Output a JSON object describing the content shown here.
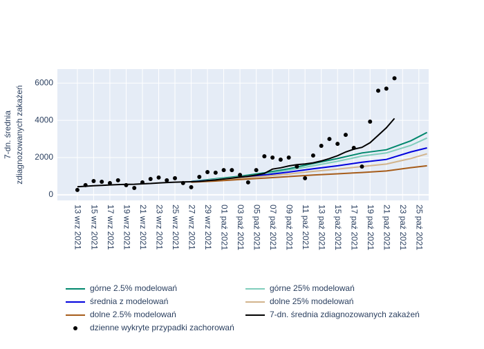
{
  "chart_data": {
    "type": "line",
    "y_label": [
      "7-dn. średnia",
      "zdiagnozowanych zakażeń"
    ],
    "ylim": [
      -300,
      6750
    ],
    "yticks": [
      0,
      2000,
      4000,
      6000
    ],
    "xlim": [
      "2021-09-10T13:00",
      "2021-10-26T05:00"
    ],
    "xticks": [
      {
        "value": "2021-09-13",
        "label": "13 wrz 2021"
      },
      {
        "value": "2021-09-15",
        "label": "15 wrz 2021"
      },
      {
        "value": "2021-09-17",
        "label": "17 wrz 2021"
      },
      {
        "value": "2021-09-19",
        "label": "19 wrz 2021"
      },
      {
        "value": "2021-09-21",
        "label": "21 wrz 2021"
      },
      {
        "value": "2021-09-23",
        "label": "23 wrz 2021"
      },
      {
        "value": "2021-09-25",
        "label": "25 wrz 2021"
      },
      {
        "value": "2021-09-27",
        "label": "27 wrz 2021"
      },
      {
        "value": "2021-09-29",
        "label": "29 wrz 2021"
      },
      {
        "value": "2021-10-01",
        "label": "01 paź 2021"
      },
      {
        "value": "2021-10-03",
        "label": "03 paź 2021"
      },
      {
        "value": "2021-10-05",
        "label": "05 paź 2021"
      },
      {
        "value": "2021-10-07",
        "label": "07 paź 2021"
      },
      {
        "value": "2021-10-09",
        "label": "09 paź 2021"
      },
      {
        "value": "2021-10-11",
        "label": "11 paź 2021"
      },
      {
        "value": "2021-10-13",
        "label": "13 paź 2021"
      },
      {
        "value": "2021-10-15",
        "label": "15 paź 2021"
      },
      {
        "value": "2021-10-17",
        "label": "17 paź 2021"
      },
      {
        "value": "2021-10-19",
        "label": "19 paź 2021"
      },
      {
        "value": "2021-10-21",
        "label": "21 paź 2021"
      },
      {
        "value": "2021-10-23",
        "label": "23 paź 2021"
      },
      {
        "value": "2021-10-25",
        "label": "25 paź 2021"
      }
    ],
    "grid": true,
    "x": [
      "2021-09-13",
      "2021-09-14",
      "2021-09-15",
      "2021-09-16",
      "2021-09-17",
      "2021-09-18",
      "2021-09-19",
      "2021-09-20",
      "2021-09-21",
      "2021-09-22",
      "2021-09-23",
      "2021-09-24",
      "2021-09-25",
      "2021-09-26",
      "2021-09-27",
      "2021-09-28",
      "2021-09-29",
      "2021-09-30",
      "2021-10-01",
      "2021-10-02",
      "2021-10-03",
      "2021-10-04",
      "2021-10-05",
      "2021-10-06",
      "2021-10-07",
      "2021-10-08",
      "2021-10-09",
      "2021-10-10",
      "2021-10-11",
      "2021-10-12",
      "2021-10-13",
      "2021-10-14",
      "2021-10-15",
      "2021-10-16",
      "2021-10-17",
      "2021-10-18",
      "2021-10-19",
      "2021-10-20",
      "2021-10-21",
      "2021-10-22"
    ],
    "series": [
      {
        "name": "górne 2.5% modelowań",
        "color": "#00876c",
        "mode": "lines",
        "x": [
          "2021-09-27",
          "2021-09-30",
          "2021-10-03",
          "2021-10-06",
          "2021-10-09",
          "2021-10-12",
          "2021-10-15",
          "2021-10-18",
          "2021-10-21",
          "2021-10-24",
          "2021-10-26"
        ],
        "values": [
          720,
          860,
          1000,
          1180,
          1400,
          1680,
          1950,
          2250,
          2420,
          2900,
          3350
        ]
      },
      {
        "name": "górne 25% modelowań",
        "color": "#7fcdbb",
        "mode": "lines",
        "x": [
          "2021-09-27",
          "2021-09-30",
          "2021-10-03",
          "2021-10-06",
          "2021-10-09",
          "2021-10-12",
          "2021-10-15",
          "2021-10-18",
          "2021-10-21",
          "2021-10-24",
          "2021-10-26"
        ],
        "values": [
          710,
          830,
          960,
          1120,
          1330,
          1560,
          1800,
          2080,
          2250,
          2650,
          3050
        ]
      },
      {
        "name": "średnia z modelowań",
        "color": "#0000dd",
        "mode": "lines",
        "x": [
          "2021-09-27",
          "2021-09-30",
          "2021-10-03",
          "2021-10-06",
          "2021-10-09",
          "2021-10-12",
          "2021-10-15",
          "2021-10-18",
          "2021-10-21",
          "2021-10-24",
          "2021-10-26"
        ],
        "values": [
          700,
          800,
          920,
          1060,
          1220,
          1400,
          1560,
          1750,
          1900,
          2300,
          2520
        ]
      },
      {
        "name": "dolne 25% modelowań",
        "color": "#d2b48c",
        "mode": "lines",
        "x": [
          "2021-09-27",
          "2021-09-30",
          "2021-10-03",
          "2021-10-06",
          "2021-10-09",
          "2021-10-12",
          "2021-10-15",
          "2021-10-18",
          "2021-10-21",
          "2021-10-24",
          "2021-10-26"
        ],
        "values": [
          690,
          780,
          880,
          1000,
          1120,
          1260,
          1380,
          1520,
          1650,
          1950,
          2200
        ]
      },
      {
        "name": "dolne 2.5% modelowań",
        "color": "#a65c1a",
        "mode": "lines",
        "x": [
          "2021-09-27",
          "2021-09-30",
          "2021-10-03",
          "2021-10-06",
          "2021-10-09",
          "2021-10-12",
          "2021-10-15",
          "2021-10-18",
          "2021-10-21",
          "2021-10-24",
          "2021-10-26"
        ],
        "values": [
          680,
          740,
          820,
          900,
          980,
          1060,
          1130,
          1200,
          1280,
          1460,
          1560
        ]
      },
      {
        "name": "7-dn. średnia zdiagnozowanych zakażeń",
        "color": "#000000",
        "mode": "lines",
        "values": [
          430,
          460,
          490,
          510,
          530,
          550,
          560,
          570,
          590,
          610,
          640,
          660,
          680,
          690,
          700,
          720,
          760,
          800,
          850,
          900,
          950,
          1000,
          1060,
          1150,
          1380,
          1450,
          1550,
          1620,
          1660,
          1720,
          1820,
          1950,
          2100,
          2300,
          2450,
          2550,
          2800,
          3200,
          3600,
          4100
        ]
      },
      {
        "name": "dzienne wykryte przypadki zachorowań",
        "color": "#000000",
        "mode": "markers",
        "values": [
          260,
          520,
          740,
          700,
          630,
          780,
          520,
          370,
          670,
          850,
          930,
          780,
          890,
          630,
          410,
          960,
          1220,
          1190,
          1330,
          1330,
          1070,
          670,
          1330,
          2070,
          2000,
          1890,
          2000,
          1520,
          890,
          2110,
          2630,
          3000,
          2740,
          3220,
          2520,
          1520,
          3930,
          5590,
          5700,
          6260
        ]
      }
    ]
  }
}
